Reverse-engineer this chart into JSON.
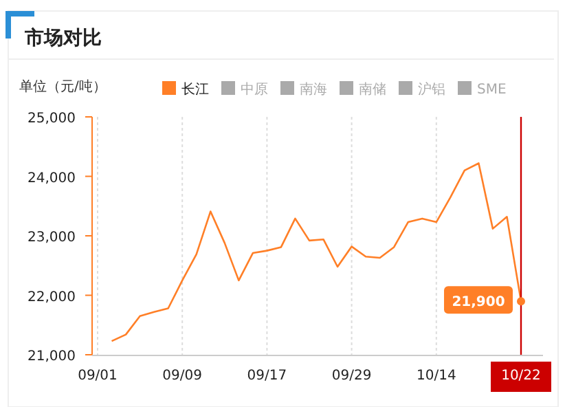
{
  "chart_data": {
    "type": "line",
    "title": "市场对比",
    "ylabel": "单位（元/吨）",
    "categories": [
      "09/01",
      null,
      null,
      null,
      null,
      null,
      "09/09",
      null,
      null,
      null,
      null,
      null,
      "09/17",
      null,
      null,
      null,
      null,
      null,
      "09/29",
      null,
      null,
      null,
      null,
      null,
      "10/14",
      null,
      null,
      null,
      null,
      null,
      "10/22"
    ],
    "series": [
      {
        "name": "长江",
        "color": "#ff7f27",
        "values": [
          null,
          21230,
          21340,
          21650,
          21720,
          21780,
          22250,
          22690,
          23410,
          22880,
          22250,
          22710,
          22750,
          22810,
          23290,
          22920,
          22940,
          22480,
          22820,
          22650,
          22630,
          22810,
          23230,
          23290,
          23230,
          23650,
          24100,
          24220,
          23120,
          23320,
          21900
        ],
        "value_labels": [
          null,
          null,
          null,
          null,
          null,
          null,
          null,
          null,
          null,
          null,
          null,
          null,
          null,
          null,
          null,
          null,
          null,
          null,
          null,
          null,
          null,
          null,
          null,
          null,
          null,
          null,
          null,
          null,
          null,
          null,
          "21,900"
        ]
      },
      {
        "name": "中原",
        "color": "#aaaaaa",
        "values": [
          null,
          null,
          null,
          null,
          null,
          null,
          null,
          null,
          null,
          null,
          null,
          null,
          null,
          null,
          null,
          null,
          null,
          null,
          null,
          null,
          null,
          null,
          null,
          null,
          null,
          null,
          null,
          null,
          null,
          null,
          null
        ]
      },
      {
        "name": "南海",
        "color": "#aaaaaa",
        "values": [
          null,
          null,
          null,
          null,
          null,
          null,
          null,
          null,
          null,
          null,
          null,
          null,
          null,
          null,
          null,
          null,
          null,
          null,
          null,
          null,
          null,
          null,
          null,
          null,
          null,
          null,
          null,
          null,
          null,
          null,
          null
        ]
      },
      {
        "name": "南储",
        "color": "#aaaaaa",
        "values": [
          null,
          null,
          null,
          null,
          null,
          null,
          null,
          null,
          null,
          null,
          null,
          null,
          null,
          null,
          null,
          null,
          null,
          null,
          null,
          null,
          null,
          null,
          null,
          null,
          null,
          null,
          null,
          null,
          null,
          null,
          null
        ]
      },
      {
        "name": "沪铝",
        "color": "#aaaaaa",
        "values": [
          null,
          null,
          null,
          null,
          null,
          null,
          null,
          null,
          null,
          null,
          null,
          null,
          null,
          null,
          null,
          null,
          null,
          null,
          null,
          null,
          null,
          null,
          null,
          null,
          null,
          null,
          null,
          null,
          null,
          null,
          null
        ]
      },
      {
        "name": "SME",
        "color": "#aaaaaa",
        "values": [
          null,
          null,
          null,
          null,
          null,
          null,
          null,
          null,
          null,
          null,
          null,
          null,
          null,
          null,
          null,
          null,
          null,
          null,
          null,
          null,
          null,
          null,
          null,
          null,
          null,
          null,
          null,
          null,
          null,
          null,
          null
        ]
      }
    ],
    "ylim": [
      21000,
      25000
    ],
    "yticks": [
      {
        "value": 21000,
        "label": "21,000"
      },
      {
        "value": 22000,
        "label": "22,000"
      },
      {
        "value": 23000,
        "label": "23,000"
      },
      {
        "value": 24000,
        "label": "24,000"
      },
      {
        "value": 25000,
        "label": "25,000"
      }
    ],
    "grid": "x",
    "legend": "top",
    "marker": "none",
    "line_style": "solid",
    "ref_lines": [
      {
        "axis": "x",
        "value": "10/22",
        "color": "#cc0000"
      }
    ]
  }
}
